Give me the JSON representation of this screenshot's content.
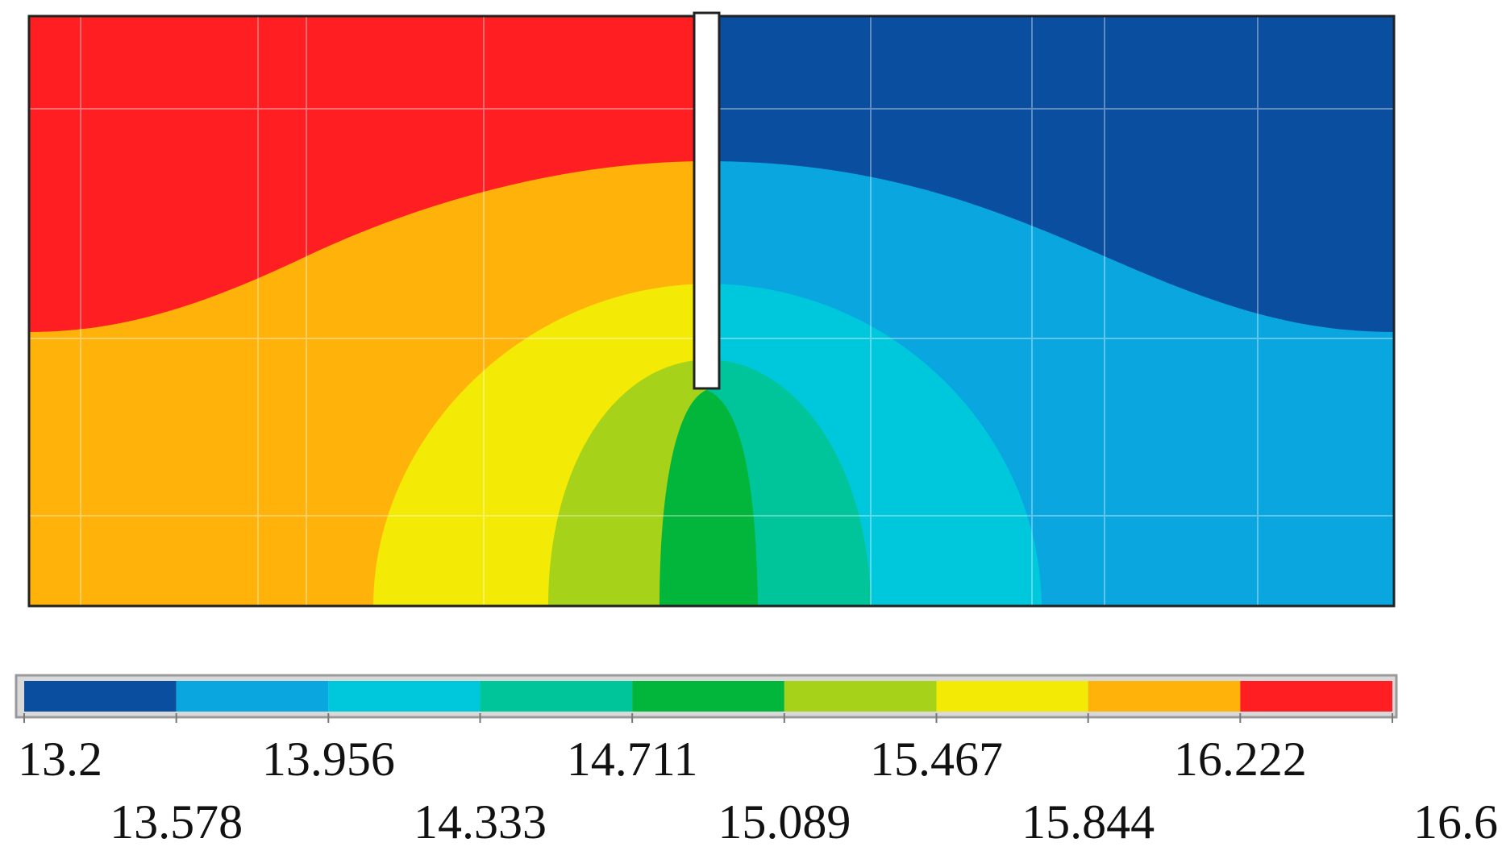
{
  "chart_data": {
    "type": "heatmap",
    "title": "",
    "xlabel": "",
    "ylabel": "",
    "colorbar": {
      "min": 13.2,
      "max": 16.6,
      "levels": [
        13.2,
        13.578,
        13.956,
        14.333,
        14.711,
        15.089,
        15.467,
        15.844,
        16.222,
        16.6
      ],
      "tick_labels": [
        "13.2",
        "13.578",
        "13.956",
        "14.333",
        "14.711",
        "15.089",
        "15.467",
        "15.844",
        "16.222",
        "16.6"
      ],
      "colors": [
        "#0a4ea0",
        "#0aa6df",
        "#00c8dc",
        "#00c59a",
        "#02b53b",
        "#a6d219",
        "#f3ea05",
        "#ffb20a",
        "#ff1e21"
      ]
    },
    "field": {
      "description_free": true,
      "slot_present": true,
      "min_region": "top-right",
      "max_region": "top-left"
    }
  },
  "colors": {
    "frame": "#222222",
    "slot": "#ffffff",
    "grid": "#ffffff",
    "colorbar_border": "#9a9a9a"
  }
}
